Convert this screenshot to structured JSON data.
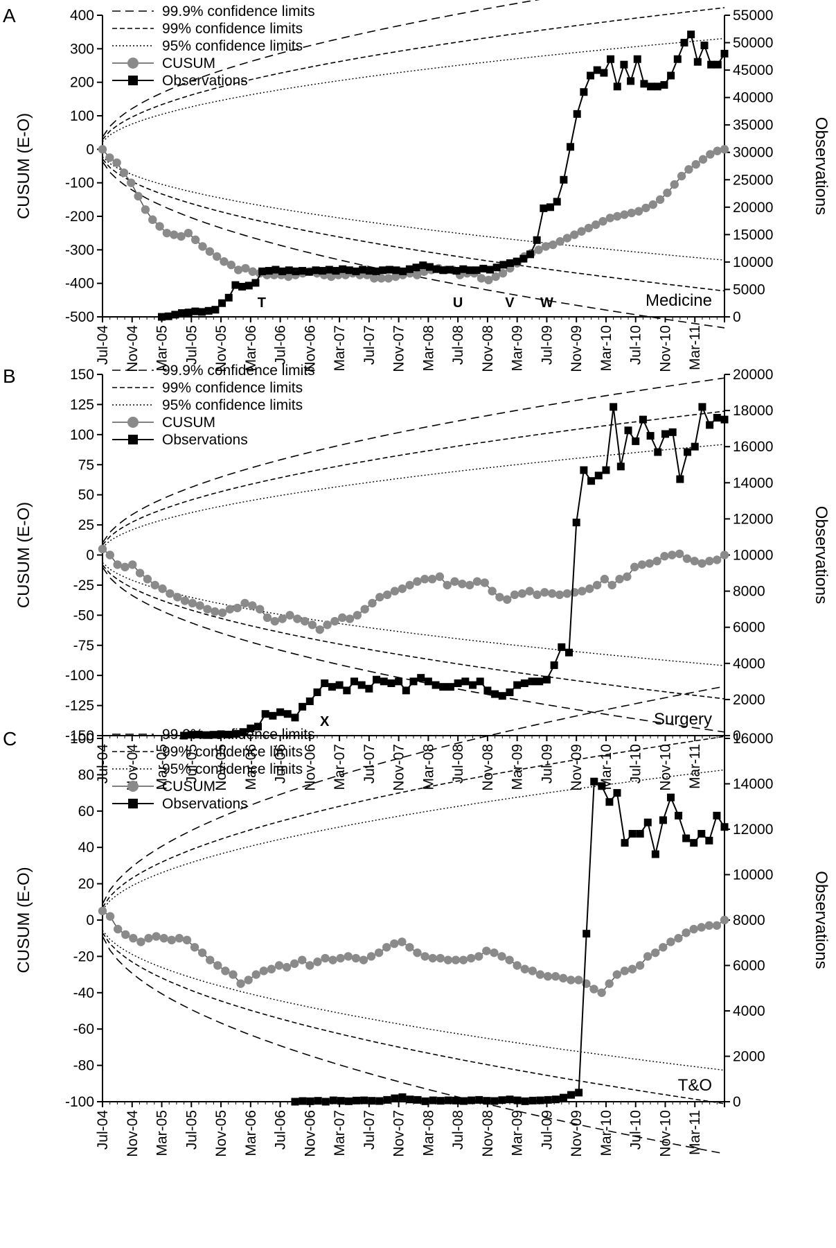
{
  "chart_data": [
    {
      "type": "line",
      "panel_letter": "A",
      "panel_label": "Medicine",
      "ylabel_left": "CUSUM (E-O)",
      "ylabel_right": "Observations",
      "ylim_left": [
        -500,
        400
      ],
      "yticks_left": [
        -500,
        -400,
        -300,
        -200,
        -100,
        0,
        100,
        200,
        300,
        400
      ],
      "ylim_right": [
        0,
        55000
      ],
      "yticks_right": [
        0,
        5000,
        10000,
        15000,
        20000,
        25000,
        30000,
        35000,
        40000,
        45000,
        50000,
        55000
      ],
      "x_tick_labels": [
        "Jul-04",
        "Nov-04",
        "Mar-05",
        "Jul-05",
        "Nov-05",
        "Mar-06",
        "Jul-06",
        "Nov-06",
        "Mar-07",
        "Jul-07",
        "Nov-07",
        "Mar-08",
        "Jul-08",
        "Nov-08",
        "Mar-09",
        "Jul-09",
        "Nov-09",
        "Mar-10",
        "Jul-10",
        "Nov-10",
        "Mar-11"
      ],
      "legend": [
        "99.9% confidence limits",
        "99% confidence limits",
        "95% confidence limits",
        "CUSUM",
        "Observations"
      ],
      "annotations": [
        {
          "text": "T",
          "month": 21.5
        },
        {
          "text": "U",
          "month": 48
        },
        {
          "text": "V",
          "month": 55
        },
        {
          "text": "W",
          "month": 60
        }
      ],
      "limits": {
        "p999": 58,
        "p99": 46,
        "p95": 36
      },
      "obs_start": 8,
      "observations": [
        0,
        100,
        400,
        700,
        800,
        1000,
        900,
        1100,
        1300,
        2500,
        3500,
        5800,
        5500,
        5700,
        6200,
        8300,
        8400,
        8600,
        8300,
        8500,
        8300,
        8400,
        8200,
        8500,
        8400,
        8600,
        8400,
        8700,
        8500,
        8300,
        8600,
        8400,
        8300,
        8500,
        8600,
        8500,
        8300,
        8700,
        9000,
        9400,
        9100,
        8700,
        8500,
        8600,
        8400,
        8700,
        8500,
        8500,
        8800,
        8600,
        9000,
        9500,
        9800,
        10100,
        10600,
        11400,
        14000,
        19800,
        20000,
        21000,
        25000,
        31000,
        37000,
        41000,
        44000,
        45000,
        44500,
        47000,
        42000,
        46000,
        43000,
        47000,
        42500,
        42000,
        42000,
        42300,
        44000,
        47000,
        50000,
        51500,
        46500,
        49500,
        46000,
        46000,
        48000
      ],
      "cusum": [
        0,
        -25,
        -40,
        -70,
        -100,
        -140,
        -180,
        -210,
        -230,
        -250,
        -255,
        -260,
        -250,
        -270,
        -290,
        -305,
        -320,
        -335,
        -345,
        -360,
        -355,
        -365,
        -370,
        -375,
        -375,
        -375,
        -380,
        -375,
        -370,
        -365,
        -370,
        -375,
        -380,
        -375,
        -375,
        -370,
        -375,
        -375,
        -385,
        -385,
        -385,
        -380,
        -375,
        -370,
        -375,
        -365,
        -360,
        -355,
        -360,
        -360,
        -375,
        -370,
        -370,
        -385,
        -390,
        -380,
        -370,
        -355,
        -340,
        -320,
        -310,
        -300,
        -290,
        -285,
        -275,
        -265,
        -255,
        -245,
        -235,
        -225,
        -215,
        -205,
        -200,
        -195,
        -190,
        -185,
        -175,
        -165,
        -150,
        -130,
        -105,
        -80,
        -60,
        -45,
        -30,
        -15,
        -5,
        0
      ]
    },
    {
      "type": "line",
      "panel_letter": "B",
      "panel_label": "Surgery",
      "ylabel_left": "CUSUM (E-O)",
      "ylabel_right": "Observations",
      "ylim_left": [
        -150,
        150
      ],
      "yticks_left": [
        -150,
        -125,
        -100,
        -75,
        -50,
        -25,
        0,
        25,
        50,
        75,
        100,
        125,
        150
      ],
      "ylim_right": [
        0,
        20000
      ],
      "yticks_right": [
        0,
        2000,
        4000,
        6000,
        8000,
        10000,
        12000,
        14000,
        16000,
        18000,
        20000
      ],
      "x_tick_labels": [
        "Jul-04",
        "Nov-04",
        "Mar-05",
        "Jul-05",
        "Nov-05",
        "Mar-06",
        "Jul-06",
        "Nov-06",
        "Mar-07",
        "Jul-07",
        "Nov-07",
        "Mar-08",
        "Jul-08",
        "Nov-08",
        "Mar-09",
        "Jul-09",
        "Nov-09",
        "Mar-10",
        "Jul-10",
        "Nov-10",
        "Mar-11"
      ],
      "legend": [
        "99.9% confidence limits",
        "99% confidence limits",
        "95% confidence limits",
        "CUSUM",
        "Observations"
      ],
      "annotations": [
        {
          "text": "X",
          "month": 30
        }
      ],
      "limits": {
        "p999": 16,
        "p99": 13,
        "p95": 10
      },
      "obs_start": 11,
      "observations": [
        0,
        50,
        60,
        30,
        50,
        80,
        60,
        100,
        200,
        400,
        500,
        1200,
        1100,
        1300,
        1200,
        1000,
        1600,
        1900,
        2400,
        2900,
        2700,
        2800,
        2500,
        3000,
        2800,
        2600,
        3100,
        3000,
        2900,
        3000,
        2500,
        3000,
        3200,
        3000,
        2800,
        2700,
        2700,
        2900,
        3000,
        2800,
        3000,
        2500,
        2300,
        2200,
        2400,
        2800,
        2900,
        3000,
        3000,
        3100,
        3900,
        4900,
        4600,
        11800,
        14700,
        14100,
        14400,
        14700,
        18200,
        14900,
        16900,
        16300,
        17500,
        16600,
        15700,
        16700,
        16800,
        14200,
        15700,
        16000,
        18200,
        17200,
        17600,
        17500
      ],
      "cusum": [
        5,
        0,
        -8,
        -10,
        -8,
        -15,
        -20,
        -25,
        -28,
        -32,
        -35,
        -38,
        -40,
        -42,
        -45,
        -47,
        -48,
        -45,
        -44,
        -40,
        -42,
        -45,
        -52,
        -55,
        -53,
        -50,
        -53,
        -55,
        -58,
        -62,
        -58,
        -55,
        -52,
        -53,
        -50,
        -45,
        -40,
        -35,
        -33,
        -30,
        -28,
        -25,
        -22,
        -20,
        -20,
        -18,
        -25,
        -22,
        -24,
        -25,
        -22,
        -23,
        -30,
        -35,
        -37,
        -33,
        -32,
        -30,
        -33,
        -31,
        -32,
        -33,
        -32,
        -31,
        -30,
        -28,
        -25,
        -20,
        -25,
        -20,
        -18,
        -10,
        -8,
        -7,
        -5,
        -1,
        0,
        1,
        -3,
        -5,
        -7,
        -5,
        -4,
        0
      ]
    },
    {
      "type": "line",
      "panel_letter": "C",
      "panel_label": "T&O",
      "ylabel_left": "CUSUM (E-O)",
      "ylabel_right": "Observations",
      "ylim_left": [
        -100,
        100
      ],
      "yticks_left": [
        -100,
        -80,
        -60,
        -40,
        -20,
        0,
        20,
        40,
        60,
        80,
        100
      ],
      "ylim_right": [
        0,
        16000
      ],
      "yticks_right": [
        0,
        2000,
        4000,
        6000,
        8000,
        10000,
        12000,
        14000,
        16000
      ],
      "x_tick_labels": [
        "Jul-04",
        "Nov-04",
        "Mar-05",
        "Jul-05",
        "Nov-05",
        "Mar-06",
        "Jul-06",
        "Nov-06",
        "Mar-07",
        "Jul-07",
        "Nov-07",
        "Mar-08",
        "Jul-08",
        "Nov-08",
        "Mar-09",
        "Jul-09",
        "Nov-09",
        "Mar-10",
        "Jul-10",
        "Nov-10",
        "Mar-11"
      ],
      "legend": [
        "99.9% confidence limits",
        "99% confidence limits",
        "95% confidence limits",
        "CUSUM",
        "Observations"
      ],
      "annotations": [],
      "limits": {
        "p999": 14,
        "p99": 11,
        "p95": 9
      },
      "obs_start": 26,
      "observations": [
        0,
        30,
        20,
        40,
        0,
        60,
        40,
        20,
        50,
        60,
        40,
        30,
        80,
        150,
        200,
        100,
        80,
        20,
        60,
        40,
        60,
        50,
        30,
        60,
        80,
        40,
        30,
        70,
        100,
        60,
        20,
        50,
        60,
        80,
        100,
        180,
        300,
        400,
        7400,
        14100,
        13900,
        13200,
        13600,
        11400,
        11800,
        11800,
        12300,
        10900,
        12400,
        13400,
        12600,
        11600,
        11400,
        11800,
        11500,
        12600,
        12100
      ],
      "cusum": [
        5,
        2,
        -5,
        -8,
        -10,
        -12,
        -10,
        -9,
        -10,
        -11,
        -10,
        -11,
        -15,
        -18,
        -22,
        -25,
        -28,
        -30,
        -35,
        -33,
        -30,
        -28,
        -27,
        -25,
        -26,
        -24,
        -22,
        -25,
        -23,
        -21,
        -22,
        -21,
        -20,
        -21,
        -22,
        -20,
        -18,
        -15,
        -13,
        -12,
        -15,
        -18,
        -20,
        -21,
        -21,
        -22,
        -22,
        -22,
        -21,
        -20,
        -17,
        -18,
        -20,
        -22,
        -25,
        -27,
        -28,
        -30,
        -31,
        -31,
        -32,
        -33,
        -33,
        -35,
        -38,
        -40,
        -35,
        -30,
        -28,
        -27,
        -25,
        -20,
        -18,
        -15,
        -12,
        -10,
        -7,
        -5,
        -4,
        -3,
        -3,
        0
      ]
    }
  ]
}
